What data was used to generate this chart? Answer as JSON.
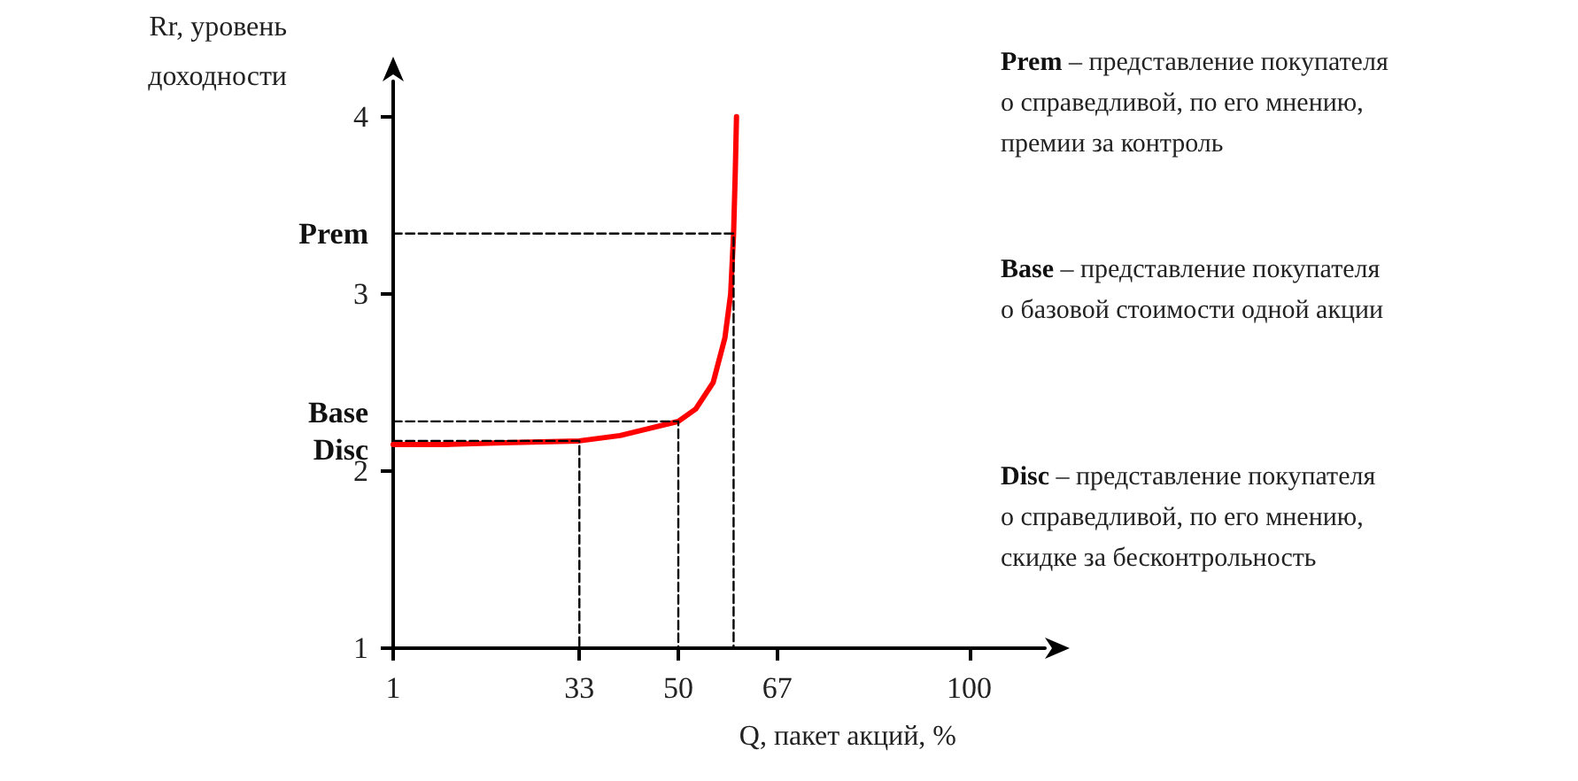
{
  "chart_data": {
    "type": "line",
    "xlabel": "Q, пакет акций, %",
    "ylabel": "Rr, уровень\nдоходности",
    "xlim": [
      1,
      113
    ],
    "ylim": [
      1,
      4.2
    ],
    "xticks": [
      1,
      33,
      50,
      67,
      100
    ],
    "yticks": [
      1,
      2,
      {
        "value": 2.17,
        "label": "Disc"
      },
      {
        "value": 2.28,
        "label": "Base"
      },
      3,
      {
        "value": 3.34,
        "label": "Prem"
      },
      4
    ],
    "grid": false,
    "marker": "none",
    "series": [
      {
        "color": "#ff0000",
        "line_style": "solid",
        "x": [
          1,
          10,
          20,
          33,
          40,
          45,
          50,
          53,
          56,
          58,
          59,
          59.5,
          59.8,
          60
        ],
        "values": [
          2.15,
          2.15,
          2.16,
          2.17,
          2.2,
          2.24,
          2.28,
          2.35,
          2.5,
          2.75,
          3.0,
          3.34,
          3.7,
          4.0
        ]
      },
      {
        "color": "#000000",
        "line_style": "dashed",
        "x": [
          1,
          33,
          33
        ],
        "values": [
          2.17,
          2.17,
          1
        ]
      },
      {
        "color": "#000000",
        "line_style": "dashed",
        "x": [
          1,
          50,
          50
        ],
        "values": [
          2.28,
          2.28,
          1
        ]
      },
      {
        "color": "#000000",
        "line_style": "dashed",
        "x": [
          1,
          59.5,
          59.5
        ],
        "values": [
          3.34,
          3.34,
          1
        ]
      }
    ],
    "annotations": [
      "Prem – представление покупателя\nо справедливой, по его мнению,\nпремии за контроль",
      "Base – представление покупателя\nо базовой стоимости одной акции",
      "Disc – представление покупателя\nо справедливой, по его мнению,\nскидке за бесконтрольность"
    ]
  }
}
